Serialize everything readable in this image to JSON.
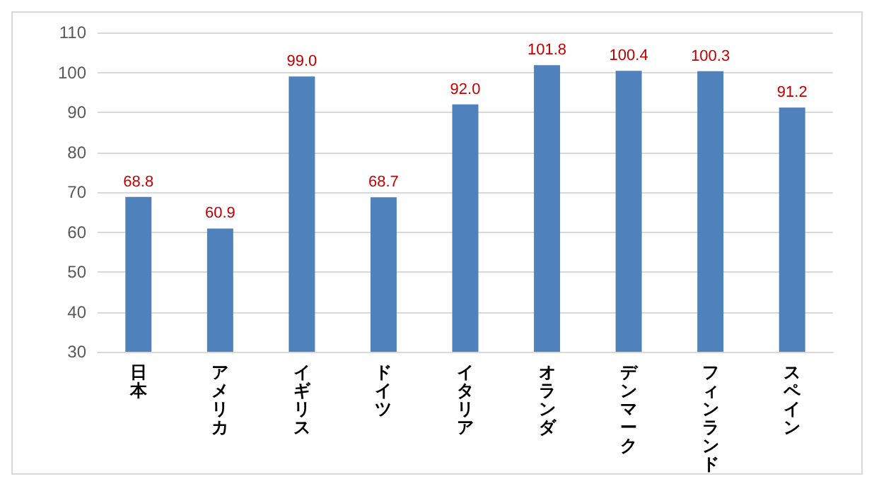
{
  "chart_data": {
    "type": "bar",
    "categories": [
      "日本",
      "アメリカ",
      "イギリス",
      "ドイツ",
      "イタリア",
      "オランダ",
      "デンマーク",
      "フィンランド",
      "スペイン"
    ],
    "values": [
      68.8,
      60.9,
      99.0,
      68.7,
      92.0,
      101.8,
      100.4,
      100.3,
      91.2
    ],
    "value_labels": [
      "68.8",
      "60.9",
      "99.0",
      "68.7",
      "92.0",
      "101.8",
      "100.4",
      "100.3",
      "91.2"
    ],
    "color": "#4f81bd",
    "ylim": [
      30,
      110
    ],
    "yticks": [
      30,
      40,
      50,
      60,
      70,
      80,
      90,
      100,
      110
    ],
    "grid": "y"
  }
}
